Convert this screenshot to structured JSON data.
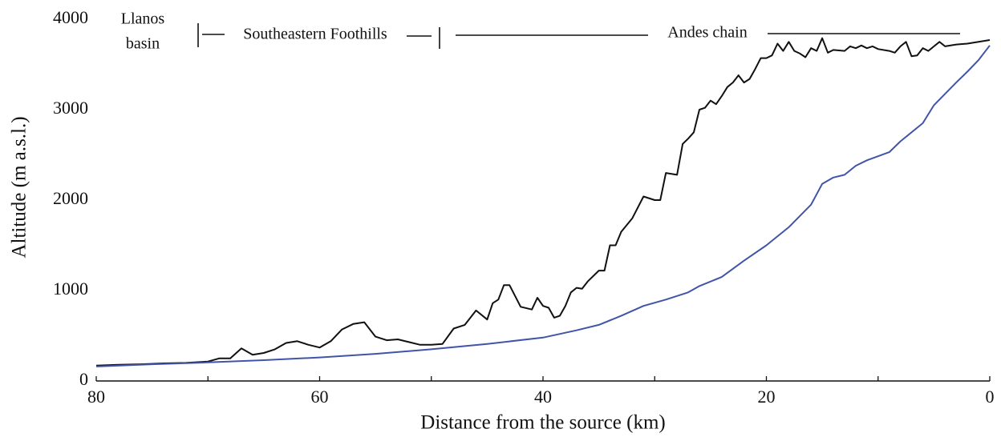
{
  "chart_data": {
    "type": "line",
    "xlabel": "Distance from the source (km)",
    "ylabel": "Altitude (m a.s.l.)",
    "annotations": [
      "Llanos",
      "basin",
      "Southeastern Foothills",
      "Andes chain"
    ],
    "xlim": [
      80,
      0
    ],
    "xticks": [
      80,
      60,
      40,
      20,
      0
    ],
    "xminorticks": [
      70,
      50,
      30,
      10
    ],
    "ylim": [
      0,
      4000
    ],
    "yticks": [
      0,
      1000,
      2000,
      3000,
      4000
    ],
    "grid": false,
    "series": [
      {
        "color": "#111111",
        "x": [
          80,
          78,
          76,
          74,
          72,
          70,
          69,
          68,
          67,
          66,
          65,
          64,
          63,
          62,
          61,
          60,
          59,
          58,
          57,
          56,
          55,
          54,
          53,
          52,
          51,
          50,
          49,
          48,
          47,
          46,
          45,
          44.5,
          44,
          43.5,
          43,
          42.5,
          42,
          41,
          40.5,
          40,
          39.5,
          39,
          38.5,
          38,
          37.5,
          37,
          36.5,
          36,
          35,
          34.5,
          34,
          33.5,
          33,
          32,
          31,
          30,
          29.5,
          29,
          28,
          27.5,
          27,
          26.5,
          26,
          25.5,
          25,
          24.5,
          24,
          23.5,
          23,
          22.5,
          22,
          21.5,
          21,
          20.5,
          20,
          19.5,
          19,
          18.5,
          18,
          17.5,
          17,
          16.5,
          16,
          15.5,
          15,
          14.5,
          14,
          13,
          12.5,
          12,
          11.5,
          11,
          10.5,
          10,
          9,
          8.5,
          8,
          7.5,
          7,
          6.5,
          6,
          5.5,
          5,
          4.5,
          4,
          3,
          2,
          1,
          0
        ],
        "values": [
          170,
          180,
          185,
          195,
          200,
          215,
          250,
          250,
          360,
          290,
          310,
          350,
          420,
          440,
          400,
          370,
          440,
          570,
          630,
          650,
          490,
          450,
          460,
          430,
          400,
          400,
          410,
          580,
          620,
          780,
          680,
          860,
          900,
          1060,
          1060,
          940,
          820,
          790,
          920,
          830,
          810,
          700,
          720,
          830,
          980,
          1030,
          1020,
          1100,
          1220,
          1220,
          1500,
          1500,
          1650,
          1800,
          2040,
          2000,
          2000,
          2300,
          2280,
          2620,
          2680,
          2750,
          3000,
          3020,
          3100,
          3060,
          3150,
          3250,
          3300,
          3380,
          3300,
          3340,
          3450,
          3570,
          3570,
          3600,
          3730,
          3650,
          3750,
          3650,
          3620,
          3580,
          3680,
          3650,
          3790,
          3630,
          3660,
          3650,
          3700,
          3680,
          3710,
          3680,
          3700,
          3670,
          3650,
          3630,
          3700,
          3750,
          3590,
          3600,
          3680,
          3650,
          3700,
          3750,
          3700,
          3720,
          3730,
          3750,
          3770
        ]
      },
      {
        "color": "#4055a8",
        "x": [
          80,
          75,
          70,
          65,
          60,
          55,
          50,
          45,
          40,
          37,
          35,
          33,
          31,
          29,
          27,
          26,
          24,
          22,
          20,
          18,
          16,
          15,
          14,
          13,
          12,
          11,
          9,
          8,
          6,
          5,
          3,
          2,
          1,
          0
        ],
        "values": [
          160,
          185,
          205,
          230,
          260,
          300,
          350,
          410,
          480,
          560,
          620,
          720,
          830,
          900,
          980,
          1050,
          1150,
          1330,
          1500,
          1700,
          1950,
          2180,
          2250,
          2280,
          2380,
          2440,
          2530,
          2650,
          2850,
          3050,
          3300,
          3420,
          3550,
          3710
        ]
      }
    ]
  }
}
